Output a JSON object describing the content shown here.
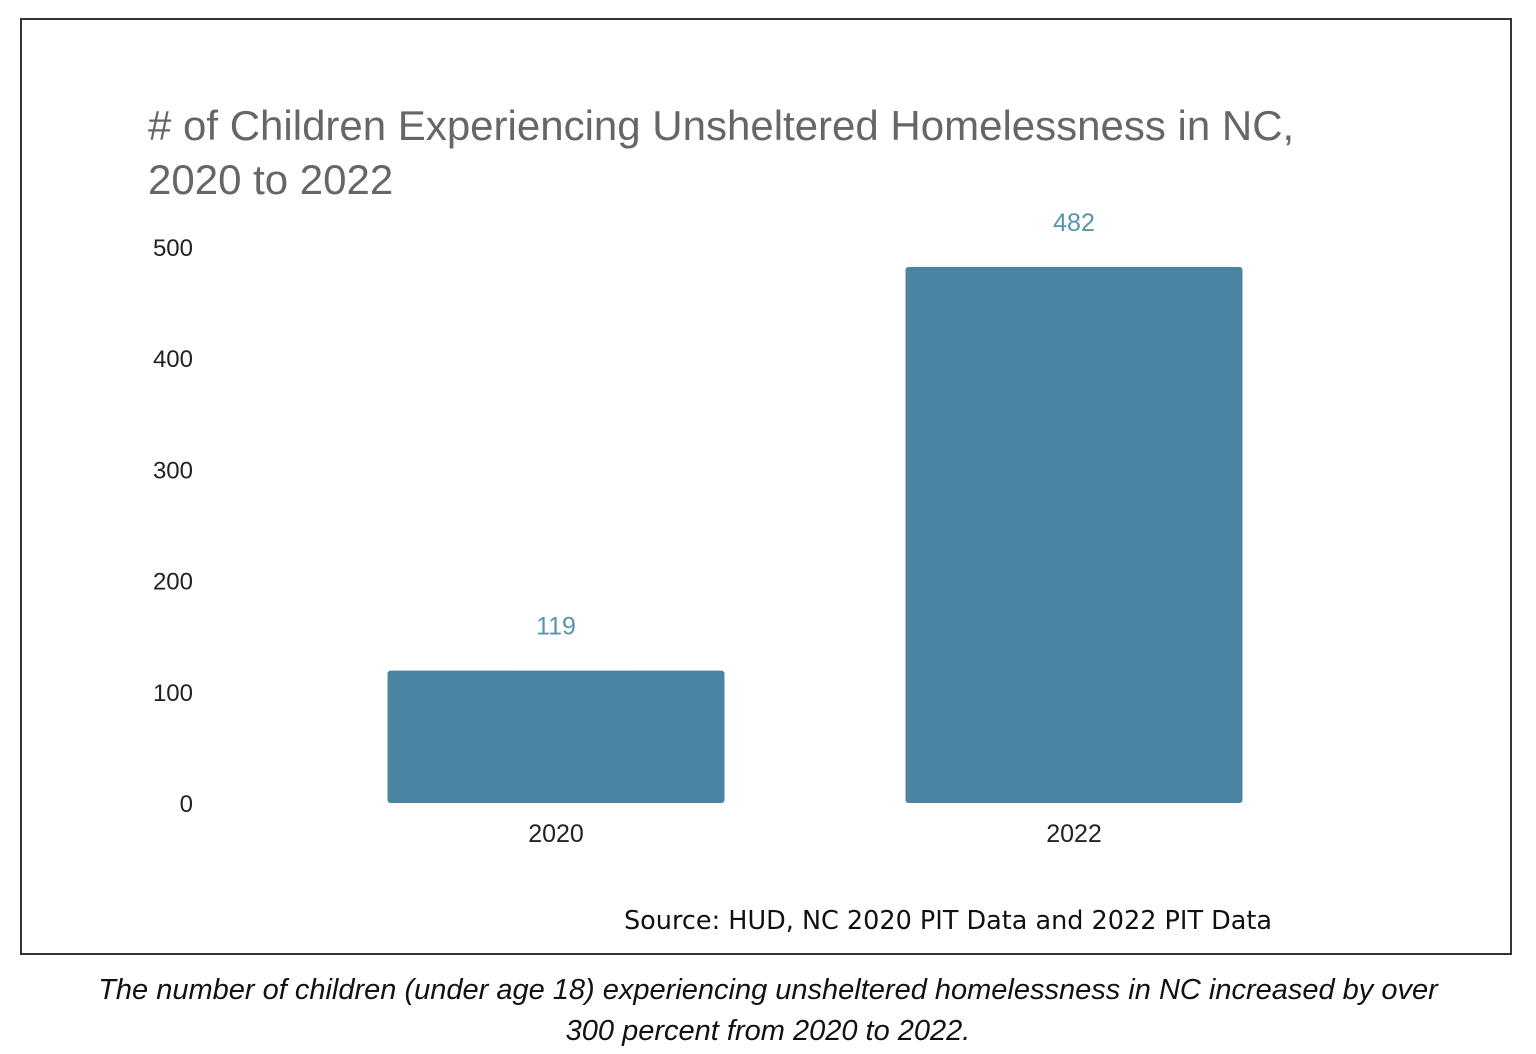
{
  "chart_data": {
    "type": "bar",
    "title_lines": [
      "# of Children Experiencing Unsheltered Homelessness in NC,",
      "2020 to 2022"
    ],
    "categories": [
      "2020",
      "2022"
    ],
    "values": [
      119,
      482
    ],
    "data_labels": [
      "119",
      "482"
    ],
    "xlabel": "",
    "ylabel": "",
    "ylim": [
      0,
      500
    ],
    "yticks": [
      "0",
      "100",
      "200",
      "300",
      "400",
      "500"
    ],
    "grid": false,
    "legend": "none",
    "bar_color": "#4a84a2",
    "label_color": "#5a93ad",
    "source": "Source: HUD, NC 2020 PIT Data and 2022 PIT Data"
  },
  "caption": {
    "lines": [
      "The number of children (under age 18) experiencing unsheltered homelessness in NC increased by over",
      "300 percent from 2020 to 2022."
    ]
  }
}
